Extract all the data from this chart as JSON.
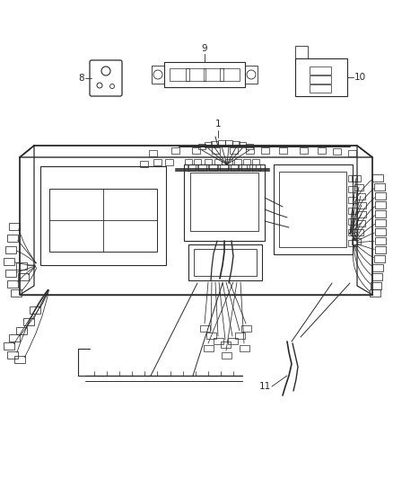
{
  "bg_color": "#ffffff",
  "line_color": "#2a2a2a",
  "label_color": "#111111",
  "label_fontsize": 7.5,
  "fig_width": 4.38,
  "fig_height": 5.33,
  "dpi": 100
}
